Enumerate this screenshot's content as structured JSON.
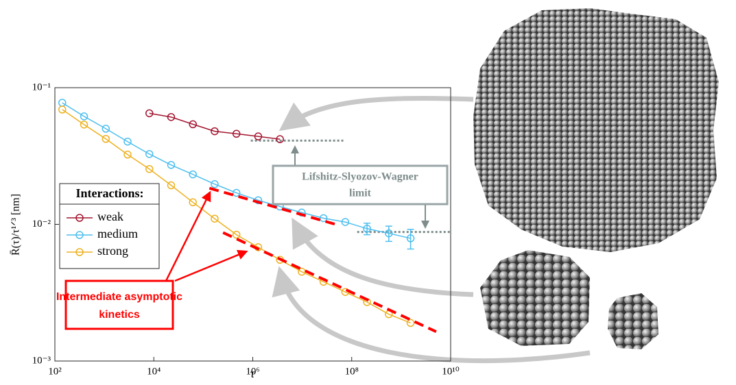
{
  "chart_data": {
    "type": "line",
    "x_label": "τ",
    "y_label": "R̄(τ)/τ¹ᐟ³ [nm]",
    "log_x": true,
    "log_y": true,
    "xlim": [
      100,
      10000000000
    ],
    "ylim": [
      0.001,
      0.1
    ],
    "xticks": [
      {
        "value": 100,
        "label": "10²"
      },
      {
        "value": 10000,
        "label": "10⁴"
      },
      {
        "value": 1000000,
        "label": "10⁶"
      },
      {
        "value": 100000000,
        "label": "10⁸"
      },
      {
        "value": 10000000000,
        "label": "10¹⁰"
      }
    ],
    "yticks": [
      {
        "value": 0.001,
        "label": "10⁻³"
      },
      {
        "value": 0.01,
        "label": "10⁻²"
      },
      {
        "value": 0.1,
        "label": "10⁻¹"
      }
    ],
    "x": [
      141,
      389,
      1072,
      2951,
      8128,
      22390,
      61660,
      169800,
      467700,
      1288000,
      3548000,
      9772000,
      26920000,
      74130000,
      204200000,
      562300000,
      1549000000
    ],
    "legend_title": "Interactions:",
    "legend_position": "left",
    "series": [
      {
        "name": "weak",
        "color": "#a2142f",
        "values": [
          null,
          null,
          null,
          null,
          0.065,
          0.061,
          0.054,
          0.048,
          0.046,
          0.044,
          0.042,
          null,
          null,
          null,
          null,
          null,
          null
        ]
      },
      {
        "name": "medium",
        "color": "#4dbeee",
        "values": [
          0.0776,
          0.0617,
          0.0501,
          0.0403,
          0.0327,
          0.0272,
          0.0232,
          0.0197,
          0.017,
          0.015,
          0.0135,
          0.0122,
          0.0111,
          0.0104,
          0.0093,
          0.0086,
          0.0079
        ],
        "errors": [
          null,
          null,
          null,
          null,
          null,
          null,
          null,
          null,
          null,
          null,
          null,
          null,
          null,
          null,
          0.0009,
          0.0011,
          0.0013
        ]
      },
      {
        "name": "strong",
        "color": "#edb120",
        "values": [
          0.0692,
          0.0537,
          0.0422,
          0.0324,
          0.0254,
          0.0193,
          0.0145,
          0.011,
          0.0084,
          0.0068,
          0.0055,
          0.0045,
          0.0038,
          0.0032,
          0.0027,
          0.0022,
          0.0019
        ]
      }
    ],
    "asymptotes": [
      {
        "x": [
          133000,
          57500000
        ],
        "y": [
          0.0184,
          0.0098
        ]
      },
      {
        "x": [
          251000,
          5100000000
        ],
        "y": [
          0.0087,
          0.00164
        ]
      }
    ],
    "lsw_limits": [
      {
        "x": [
          912000,
          67600000
        ],
        "y": [
          0.041,
          0.041
        ]
      },
      {
        "x": [
          129000000,
          9800000000
        ],
        "y": [
          0.0088,
          0.0088
        ]
      }
    ],
    "annotations": {
      "lsw": [
        "Lifshitz-Slyozov-Wagner",
        "limit"
      ],
      "asymptotic": [
        "Intermediate asymptotic",
        "kinetics"
      ]
    }
  }
}
